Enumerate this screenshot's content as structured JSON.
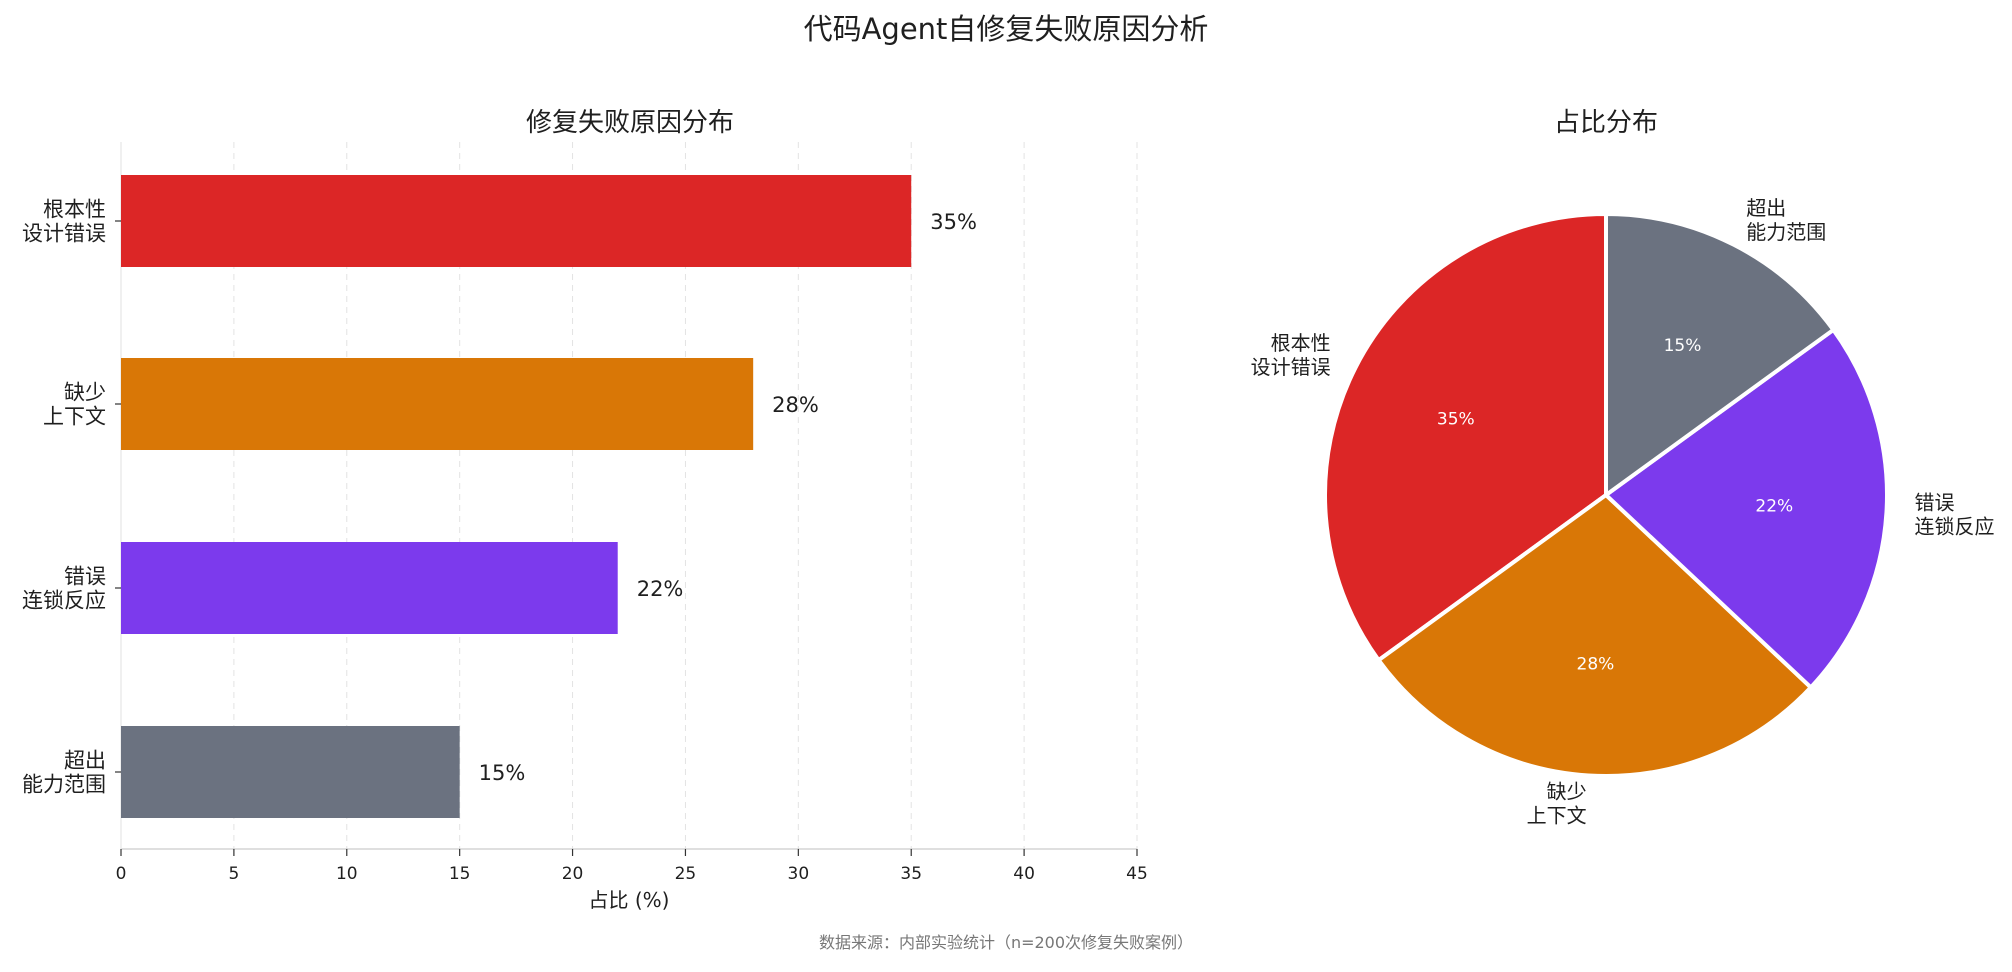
{
  "title": "代码Agent自修复失败原因分析",
  "footnote": "数据来源：内部实验统计（n=200次修复失败案例）",
  "chart_data": [
    {
      "type": "bar",
      "orientation": "horizontal",
      "title": "修复失败原因分布",
      "xlabel": "占比 (%)",
      "ylabel": "",
      "xlim": [
        0,
        45
      ],
      "xticks": [
        0,
        5,
        10,
        15,
        20,
        25,
        30,
        35,
        40,
        45
      ],
      "grid": "x-dashed",
      "categories": [
        [
          "根本性",
          "设计错误"
        ],
        [
          "缺少",
          "上下文"
        ],
        [
          "错误",
          "连锁反应"
        ],
        [
          "超出",
          "能力范围"
        ]
      ],
      "values": [
        35,
        28,
        22,
        15
      ],
      "value_labels": [
        "35%",
        "28%",
        "22%",
        "15%"
      ],
      "colors": [
        "#dc2626",
        "#d97706",
        "#7c3aed",
        "#6b7280"
      ]
    },
    {
      "type": "pie",
      "title": "占比分布",
      "labels": [
        [
          "根本性",
          "设计错误"
        ],
        [
          "缺少",
          "上下文"
        ],
        [
          "错误",
          "连锁反应"
        ],
        [
          "超出",
          "能力范围"
        ]
      ],
      "values": [
        35,
        28,
        22,
        15
      ],
      "value_labels": [
        "35%",
        "28%",
        "22%",
        "15%"
      ],
      "colors": [
        "#dc2626",
        "#d97706",
        "#7c3aed",
        "#6b7280"
      ],
      "start_angle_deg": 90,
      "direction": "counterclockwise"
    }
  ]
}
